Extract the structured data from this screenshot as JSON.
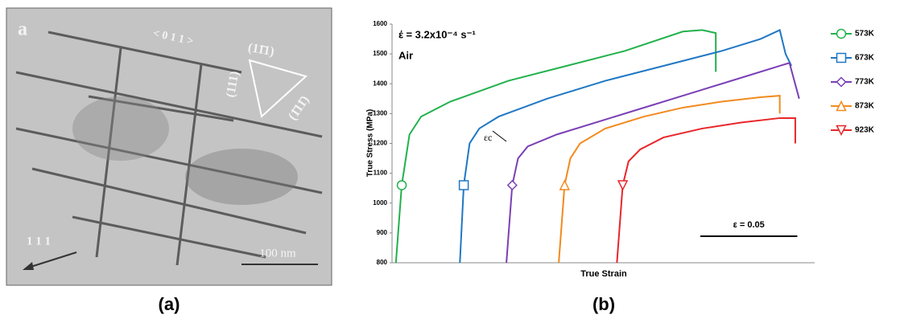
{
  "figure": {
    "panel_a": {
      "label": "a",
      "direction": "< 0 1 1 >",
      "plane_top": "(11̄1)",
      "plane_left": "(111)",
      "plane_right": "(1̄11̄)",
      "arrow_label": "1 1 1",
      "scale": "100 nm",
      "caption": "(a)"
    },
    "panel_b": {
      "caption": "(b)"
    }
  },
  "chart_data": {
    "type": "line",
    "x_label": "True Strain",
    "y_label": "True Stress (MPa)",
    "annotations": {
      "rate": "έ = 3.2x10⁻⁴ s⁻¹",
      "environment": "Air",
      "critical": "εc"
    },
    "scale_bar": {
      "value": 0.05,
      "label": "ε = 0.05"
    },
    "xlim": [
      0,
      0.218
    ],
    "ylim": [
      800,
      1600
    ],
    "yticks": [
      800,
      900,
      1000,
      1100,
      1200,
      1300,
      1400,
      1500,
      1600
    ],
    "grid": false,
    "legend": "right",
    "series": [
      {
        "name": "573K",
        "color": "#22b14c",
        "marker": "circle",
        "x": [
          0.002,
          0.005,
          0.009,
          0.015,
          0.03,
          0.06,
          0.09,
          0.12,
          0.15,
          0.16,
          0.167,
          0.167
        ],
        "values": [
          800,
          1060,
          1230,
          1290,
          1340,
          1410,
          1460,
          1510,
          1575,
          1580,
          1570,
          1440
        ]
      },
      {
        "name": "673K",
        "color": "#1f77c4",
        "marker": "square",
        "x": [
          0.035,
          0.037,
          0.04,
          0.045,
          0.055,
          0.08,
          0.11,
          0.14,
          0.17,
          0.19,
          0.2,
          0.203,
          0.206
        ],
        "values": [
          800,
          1060,
          1200,
          1250,
          1290,
          1350,
          1410,
          1460,
          1510,
          1550,
          1580,
          1500,
          1460
        ]
      },
      {
        "name": "773K",
        "color": "#7b3fb5",
        "marker": "diamond",
        "x": [
          0.059,
          0.062,
          0.065,
          0.07,
          0.085,
          0.11,
          0.135,
          0.16,
          0.185,
          0.2,
          0.205,
          0.21
        ],
        "values": [
          800,
          1060,
          1150,
          1190,
          1230,
          1280,
          1330,
          1380,
          1430,
          1460,
          1470,
          1350
        ]
      },
      {
        "name": "873K",
        "color": "#f28a1e",
        "marker": "triangle-up",
        "x": [
          0.086,
          0.089,
          0.092,
          0.097,
          0.11,
          0.13,
          0.15,
          0.17,
          0.19,
          0.2,
          0.2
        ],
        "values": [
          800,
          1060,
          1150,
          1200,
          1250,
          1290,
          1320,
          1340,
          1355,
          1360,
          1300
        ]
      },
      {
        "name": "923K",
        "color": "#e8262a",
        "marker": "triangle-down",
        "x": [
          0.116,
          0.119,
          0.122,
          0.128,
          0.14,
          0.16,
          0.18,
          0.2,
          0.208,
          0.208
        ],
        "values": [
          800,
          1060,
          1140,
          1180,
          1220,
          1250,
          1270,
          1285,
          1285,
          1200
        ]
      }
    ]
  }
}
